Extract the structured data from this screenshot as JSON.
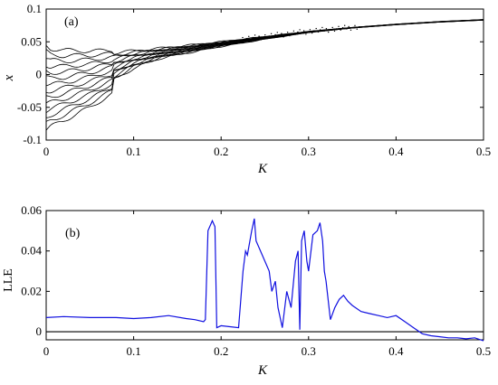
{
  "figure": {
    "colors": {
      "panel_a": "#000000",
      "panel_b": "#1010e0",
      "zero_line": "#000000",
      "axes": "#000000"
    }
  },
  "chart_data": [
    {
      "type": "scatter",
      "panel_label": "(a)",
      "xlabel": "K",
      "ylabel": "x",
      "xlim": [
        0,
        0.5
      ],
      "ylim": [
        -0.1,
        0.1
      ],
      "xticks": [
        "0",
        "0.1",
        "0.2",
        "0.3",
        "0.4",
        "0.5"
      ],
      "yticks": [
        "-0.1",
        "-0.05",
        "0",
        "0.05",
        "0.1"
      ],
      "grid": false,
      "style": "many thin black trajectories (bifurcation-like diagram)",
      "series_envelope": [
        {
          "x": [
            0.0,
            0.005,
            0.02,
            0.05,
            0.075,
            0.076,
            0.1,
            0.13,
            0.16,
            0.2,
            0.25,
            0.3,
            0.35,
            0.4,
            0.45,
            0.5
          ],
          "upper": [
            0.045,
            0.04,
            0.037,
            0.036,
            0.037,
            0.033,
            0.036,
            0.04,
            0.044,
            0.05,
            0.058,
            0.066,
            0.072,
            0.077,
            0.081,
            0.084
          ],
          "lower": [
            -0.085,
            -0.08,
            -0.07,
            -0.05,
            -0.03,
            -0.01,
            0.01,
            0.025,
            0.033,
            0.043,
            0.054,
            0.064,
            0.071,
            0.076,
            0.08,
            0.083
          ]
        }
      ]
    },
    {
      "type": "line",
      "panel_label": "(b)",
      "xlabel": "K",
      "ylabel": "LLE",
      "xlim": [
        0,
        0.5
      ],
      "ylim": [
        -0.004,
        0.06
      ],
      "xticks": [
        "0",
        "0.1",
        "0.2",
        "0.3",
        "0.4",
        "0.5"
      ],
      "yticks": [
        "0",
        "0.02",
        "0.04",
        "0.06"
      ],
      "grid": false,
      "reference_line_y": 0,
      "x": [
        0,
        0.02,
        0.05,
        0.08,
        0.1,
        0.12,
        0.14,
        0.16,
        0.17,
        0.18,
        0.182,
        0.185,
        0.19,
        0.193,
        0.195,
        0.2,
        0.22,
        0.225,
        0.228,
        0.23,
        0.235,
        0.238,
        0.24,
        0.245,
        0.25,
        0.255,
        0.258,
        0.262,
        0.265,
        0.27,
        0.275,
        0.28,
        0.285,
        0.288,
        0.29,
        0.292,
        0.295,
        0.298,
        0.3,
        0.305,
        0.31,
        0.313,
        0.316,
        0.318,
        0.32,
        0.325,
        0.33,
        0.335,
        0.34,
        0.345,
        0.35,
        0.36,
        0.37,
        0.38,
        0.39,
        0.4,
        0.41,
        0.42,
        0.43,
        0.44,
        0.45,
        0.46,
        0.47,
        0.48,
        0.49,
        0.5
      ],
      "values": [
        0.007,
        0.0075,
        0.007,
        0.007,
        0.0065,
        0.007,
        0.008,
        0.0065,
        0.006,
        0.005,
        0.006,
        0.05,
        0.055,
        0.052,
        0.002,
        0.003,
        0.002,
        0.03,
        0.04,
        0.038,
        0.05,
        0.056,
        0.045,
        0.04,
        0.035,
        0.03,
        0.02,
        0.025,
        0.012,
        0.002,
        0.02,
        0.012,
        0.035,
        0.04,
        0.001,
        0.045,
        0.05,
        0.035,
        0.03,
        0.048,
        0.05,
        0.054,
        0.045,
        0.03,
        0.025,
        0.006,
        0.012,
        0.016,
        0.018,
        0.015,
        0.013,
        0.01,
        0.009,
        0.008,
        0.007,
        0.008,
        0.005,
        0.002,
        -0.001,
        -0.002,
        -0.0025,
        -0.003,
        -0.003,
        -0.0035,
        -0.003,
        -0.0045
      ]
    }
  ]
}
